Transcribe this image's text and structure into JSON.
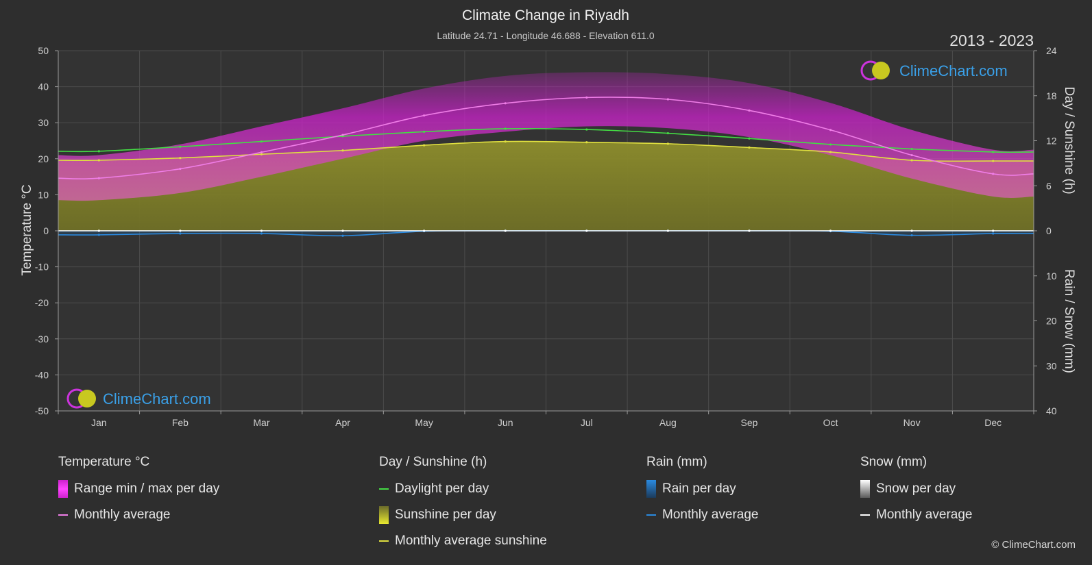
{
  "chart_data": {
    "type": "area",
    "title": "Climate Change in Riyadh",
    "subtitle": "Latitude 24.71 - Longitude 46.688 - Elevation 611.0",
    "period": "2013 - 2023",
    "watermark": "ClimeChart.com",
    "categories": [
      "Jan",
      "Feb",
      "Mar",
      "Apr",
      "May",
      "Jun",
      "Jul",
      "Aug",
      "Sep",
      "Oct",
      "Nov",
      "Dec"
    ],
    "y_left": {
      "label": "Temperature °C",
      "range": [
        -50,
        50
      ],
      "ticks": [
        50,
        40,
        30,
        20,
        10,
        0,
        -10,
        -20,
        -30,
        -40,
        -50
      ]
    },
    "y_right_top": {
      "label": "Day / Sunshine (h)",
      "range": [
        0,
        24
      ],
      "ticks": [
        24,
        18,
        12,
        6,
        0
      ]
    },
    "y_right_bottom": {
      "label": "Rain / Snow (mm)",
      "range": [
        0,
        40
      ],
      "ticks": [
        10,
        20,
        30,
        40
      ]
    },
    "series": [
      {
        "name": "Monthly average",
        "group": "Temperature °C",
        "unit": "°C",
        "color": "#f07ee8",
        "values": [
          14.6,
          17.2,
          21.8,
          26.6,
          32.0,
          35.4,
          37.0,
          36.5,
          33.4,
          28.0,
          21.0,
          15.8
        ]
      },
      {
        "name": "Range min / max per day (min)",
        "group": "Temperature °C",
        "unit": "°C",
        "color": "#cc22cc",
        "values": [
          8.5,
          10.5,
          15.0,
          20.0,
          25.0,
          27.5,
          29.0,
          28.5,
          26.0,
          21.0,
          14.5,
          9.5
        ]
      },
      {
        "name": "Range min / max per day (max)",
        "group": "Temperature °C",
        "unit": "°C",
        "color": "#cc22cc",
        "values": [
          21.0,
          24.0,
          29.0,
          34.0,
          39.5,
          43.0,
          44.0,
          43.5,
          41.0,
          35.5,
          28.0,
          22.5
        ]
      },
      {
        "name": "Daylight per day",
        "group": "Day / Sunshine (h)",
        "unit": "h",
        "color": "#44dd44",
        "values": [
          10.6,
          11.2,
          11.9,
          12.6,
          13.2,
          13.6,
          13.5,
          13.0,
          12.3,
          11.5,
          10.9,
          10.5
        ]
      },
      {
        "name": "Monthly average sunshine",
        "group": "Day / Sunshine (h)",
        "unit": "h",
        "color": "#e0e040",
        "values": [
          9.4,
          9.7,
          10.2,
          10.7,
          11.4,
          11.9,
          11.8,
          11.6,
          11.1,
          10.5,
          9.4,
          9.3
        ]
      },
      {
        "name": "Monthly average",
        "group": "Rain (mm)",
        "unit": "mm",
        "color": "#2a8ae0",
        "values": [
          0.9,
          0.6,
          0.6,
          1.1,
          0.1,
          0.0,
          0.0,
          0.0,
          0.0,
          0.1,
          1.0,
          0.6
        ]
      },
      {
        "name": "Monthly average",
        "group": "Snow (mm)",
        "unit": "mm",
        "color": "#ffffff",
        "values": [
          0,
          0,
          0,
          0,
          0,
          0,
          0,
          0,
          0,
          0,
          0,
          0
        ]
      }
    ],
    "grid": true
  },
  "legend": {
    "temperature": {
      "title": "Temperature °C",
      "range_label": "Range min / max per day",
      "avg_label": "Monthly average"
    },
    "sunshine": {
      "title": "Day / Sunshine (h)",
      "daylight_label": "Daylight per day",
      "sunshine_label": "Sunshine per day",
      "avg_label": "Monthly average sunshine"
    },
    "rain": {
      "title": "Rain (mm)",
      "rain_label": "Rain per day",
      "avg_label": "Monthly average"
    },
    "snow": {
      "title": "Snow (mm)",
      "snow_label": "Snow per day",
      "avg_label": "Monthly average"
    }
  },
  "colors": {
    "background": "#2e2e2e",
    "temp_range": "#cc22cc",
    "temp_avg": "#f07ee8",
    "daylight": "#44dd44",
    "sunshine_fill": "#8c8c2a",
    "sunshine_avg": "#e0e040",
    "rain": "#2a8ae0",
    "snow": "#ffffff",
    "brand": "#3aa0e8"
  },
  "copyright": "© ClimeChart.com"
}
